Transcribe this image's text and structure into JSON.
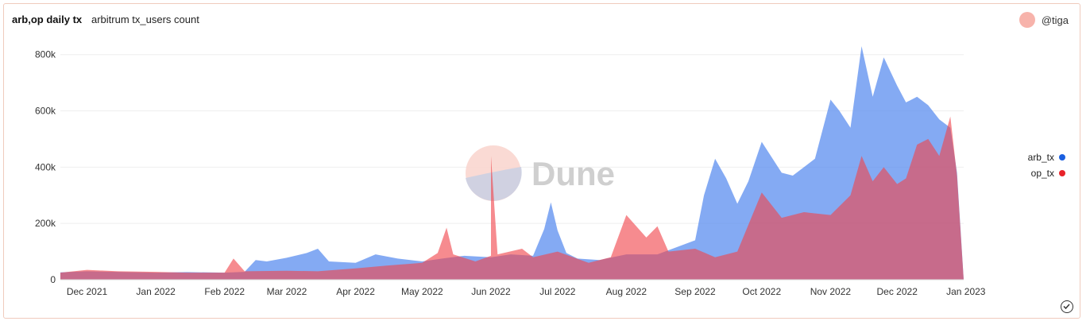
{
  "header": {
    "title": "arb,op daily tx",
    "subtitle": "arbitrum tx_users count",
    "user": "@tiga"
  },
  "watermark": "Dune",
  "colors": {
    "arb": "#5b8def",
    "op": "#f0444a",
    "arb_dot": "#1a5fe0",
    "op_dot": "#e8232a"
  },
  "chart_data": {
    "type": "area",
    "title": "arb,op daily tx",
    "ylim": [
      0,
      850000
    ],
    "y_ticks": [
      0,
      200000,
      400000,
      600000,
      800000
    ],
    "y_tick_labels": [
      "0",
      "200k",
      "400k",
      "600k",
      "800k"
    ],
    "x_range": [
      "2021-11-19",
      "2022-12-31"
    ],
    "x_ticks": [
      "2021-12-01",
      "2022-01-01",
      "2022-02-01",
      "2022-03-01",
      "2022-04-01",
      "2022-05-01",
      "2022-06-01",
      "2022-07-01",
      "2022-08-01",
      "2022-09-01",
      "2022-10-01",
      "2022-11-01",
      "2022-12-01",
      "2023-01-01"
    ],
    "x_tick_labels": [
      "Dec 2021",
      "Jan 2022",
      "Feb 2022",
      "Mar 2022",
      "Apr 2022",
      "May 2022",
      "Jun 2022",
      "Jul 2022",
      "Aug 2022",
      "Sep 2022",
      "Oct 2022",
      "Nov 2022",
      "Dec 2022",
      "Jan 2023"
    ],
    "legend_position": "right",
    "series": [
      {
        "name": "arb_tx",
        "points": [
          [
            "2021-11-19",
            26000
          ],
          [
            "2021-12-01",
            30000
          ],
          [
            "2021-12-15",
            28000
          ],
          [
            "2022-01-01",
            25000
          ],
          [
            "2022-01-15",
            27000
          ],
          [
            "2022-02-01",
            25000
          ],
          [
            "2022-02-10",
            28000
          ],
          [
            "2022-02-15",
            70000
          ],
          [
            "2022-02-20",
            65000
          ],
          [
            "2022-03-01",
            78000
          ],
          [
            "2022-03-10",
            95000
          ],
          [
            "2022-03-15",
            110000
          ],
          [
            "2022-03-20",
            65000
          ],
          [
            "2022-04-01",
            60000
          ],
          [
            "2022-04-10",
            90000
          ],
          [
            "2022-04-20",
            75000
          ],
          [
            "2022-05-01",
            65000
          ],
          [
            "2022-05-10",
            75000
          ],
          [
            "2022-05-20",
            85000
          ],
          [
            "2022-06-01",
            80000
          ],
          [
            "2022-06-10",
            90000
          ],
          [
            "2022-06-20",
            85000
          ],
          [
            "2022-06-25",
            180000
          ],
          [
            "2022-06-28",
            275000
          ],
          [
            "2022-07-01",
            175000
          ],
          [
            "2022-07-05",
            95000
          ],
          [
            "2022-07-10",
            75000
          ],
          [
            "2022-07-20",
            70000
          ],
          [
            "2022-08-01",
            90000
          ],
          [
            "2022-08-15",
            90000
          ],
          [
            "2022-09-01",
            140000
          ],
          [
            "2022-09-05",
            300000
          ],
          [
            "2022-09-10",
            430000
          ],
          [
            "2022-09-15",
            360000
          ],
          [
            "2022-09-20",
            270000
          ],
          [
            "2022-09-25",
            350000
          ],
          [
            "2022-10-01",
            490000
          ],
          [
            "2022-10-10",
            380000
          ],
          [
            "2022-10-15",
            370000
          ],
          [
            "2022-10-20",
            400000
          ],
          [
            "2022-10-25",
            430000
          ],
          [
            "2022-11-01",
            640000
          ],
          [
            "2022-11-05",
            600000
          ],
          [
            "2022-11-10",
            540000
          ],
          [
            "2022-11-15",
            830000
          ],
          [
            "2022-11-20",
            650000
          ],
          [
            "2022-11-25",
            790000
          ],
          [
            "2022-12-01",
            690000
          ],
          [
            "2022-12-05",
            630000
          ],
          [
            "2022-12-10",
            650000
          ],
          [
            "2022-12-15",
            620000
          ],
          [
            "2022-12-20",
            570000
          ],
          [
            "2022-12-25",
            540000
          ],
          [
            "2022-12-28",
            380000
          ],
          [
            "2022-12-31",
            0
          ]
        ]
      },
      {
        "name": "op_tx",
        "points": [
          [
            "2021-11-19",
            25000
          ],
          [
            "2021-12-01",
            35000
          ],
          [
            "2021-12-15",
            30000
          ],
          [
            "2022-01-01",
            28000
          ],
          [
            "2022-01-15",
            25000
          ],
          [
            "2022-02-01",
            25000
          ],
          [
            "2022-02-05",
            75000
          ],
          [
            "2022-02-10",
            30000
          ],
          [
            "2022-03-01",
            32000
          ],
          [
            "2022-03-15",
            30000
          ],
          [
            "2022-04-01",
            40000
          ],
          [
            "2022-04-15",
            50000
          ],
          [
            "2022-05-01",
            60000
          ],
          [
            "2022-05-08",
            95000
          ],
          [
            "2022-05-12",
            185000
          ],
          [
            "2022-05-15",
            90000
          ],
          [
            "2022-05-25",
            65000
          ],
          [
            "2022-06-01",
            85000
          ],
          [
            "2022-06-01",
            440000
          ],
          [
            "2022-06-04",
            90000
          ],
          [
            "2022-06-15",
            110000
          ],
          [
            "2022-06-20",
            80000
          ],
          [
            "2022-07-01",
            100000
          ],
          [
            "2022-07-15",
            60000
          ],
          [
            "2022-07-25",
            80000
          ],
          [
            "2022-08-01",
            230000
          ],
          [
            "2022-08-10",
            150000
          ],
          [
            "2022-08-15",
            190000
          ],
          [
            "2022-08-20",
            100000
          ],
          [
            "2022-09-01",
            110000
          ],
          [
            "2022-09-10",
            80000
          ],
          [
            "2022-09-20",
            100000
          ],
          [
            "2022-10-01",
            310000
          ],
          [
            "2022-10-10",
            220000
          ],
          [
            "2022-10-20",
            240000
          ],
          [
            "2022-11-01",
            230000
          ],
          [
            "2022-11-10",
            300000
          ],
          [
            "2022-11-15",
            440000
          ],
          [
            "2022-11-20",
            350000
          ],
          [
            "2022-11-25",
            400000
          ],
          [
            "2022-12-01",
            340000
          ],
          [
            "2022-12-05",
            360000
          ],
          [
            "2022-12-10",
            480000
          ],
          [
            "2022-12-15",
            500000
          ],
          [
            "2022-12-20",
            440000
          ],
          [
            "2022-12-25",
            580000
          ],
          [
            "2022-12-28",
            370000
          ],
          [
            "2022-12-31",
            0
          ]
        ]
      }
    ]
  }
}
